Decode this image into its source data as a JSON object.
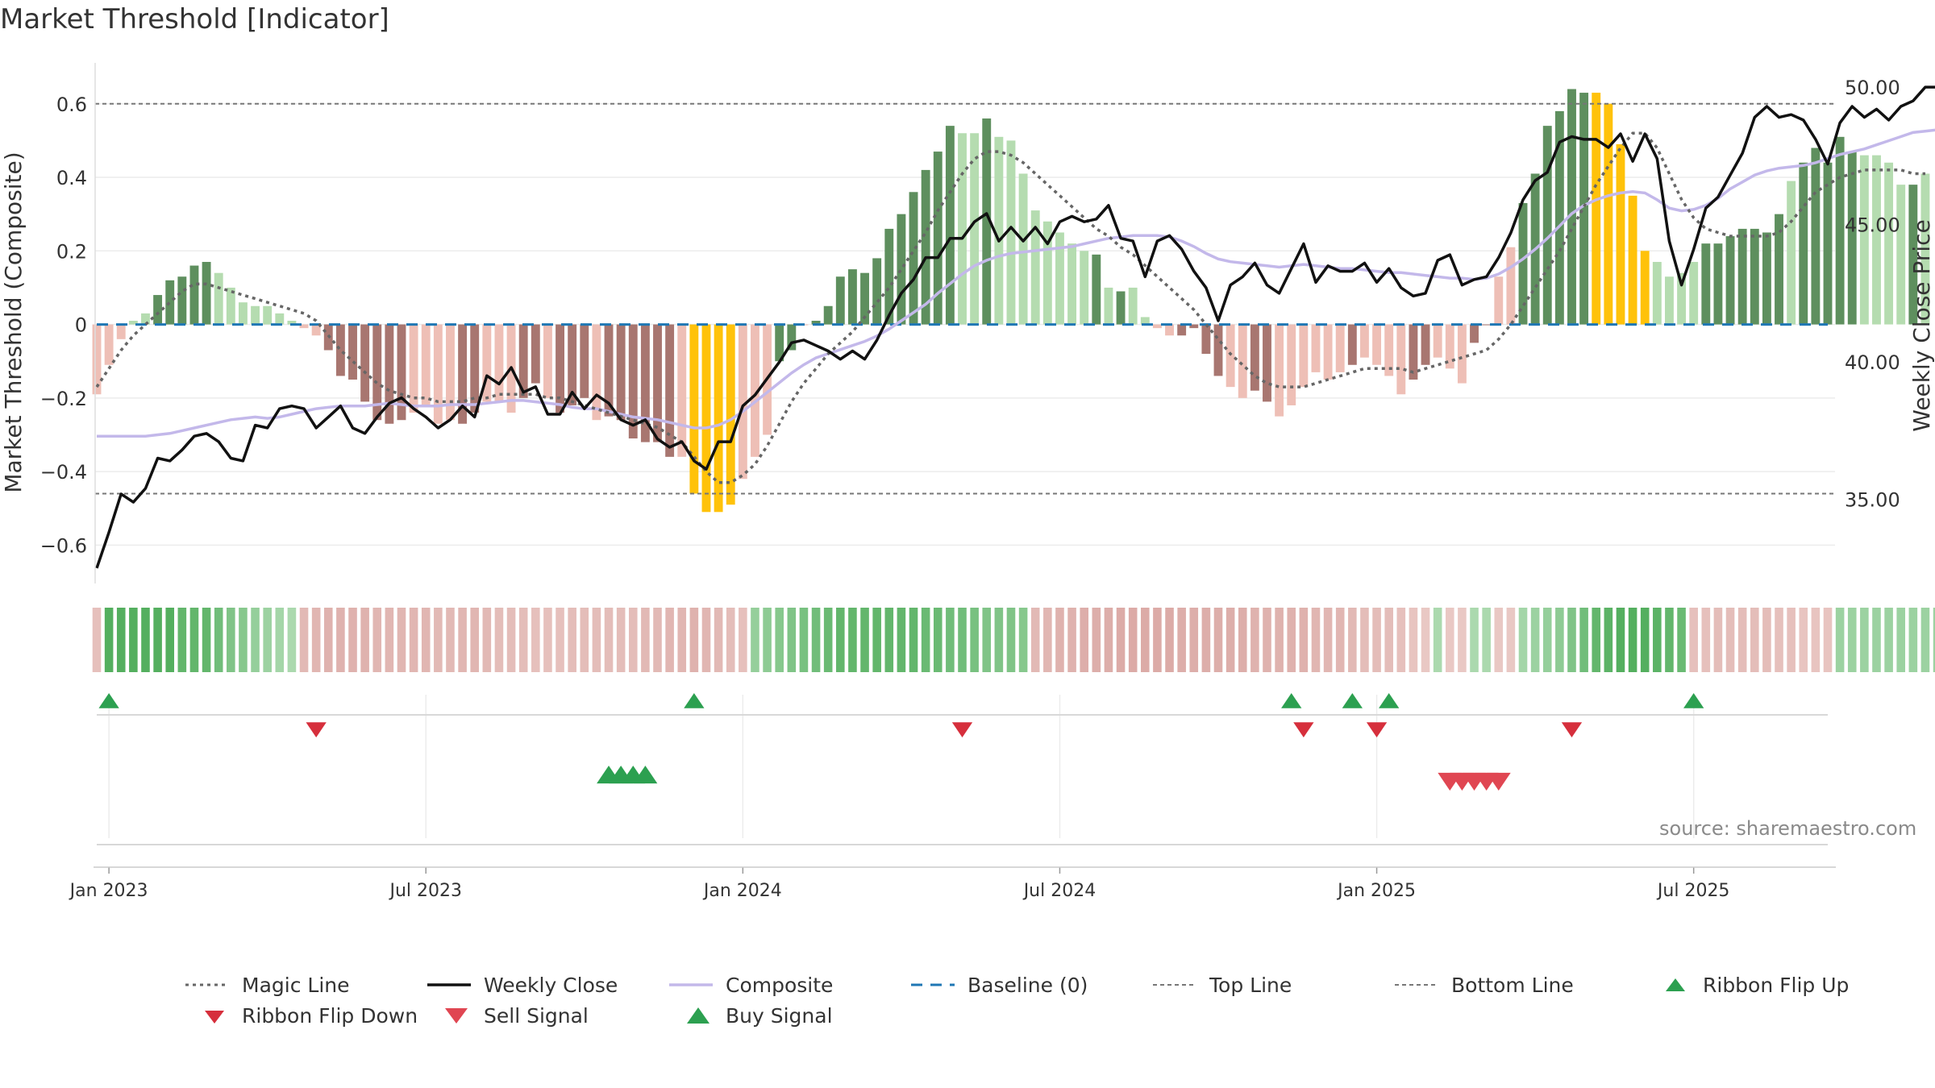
{
  "chart_data": {
    "type": "bar",
    "title": "Market Threshold [Indicator]",
    "source": "source: sharemaestro.com",
    "ylabel_left": "Market Threshold (Composite)",
    "ylabel_right": "Weekly Close Price",
    "ylim_left": [
      -0.7,
      0.72
    ],
    "ylim_right": [
      32.0,
      51.0
    ],
    "left_ticks": [
      "−0.6",
      "−0.4",
      "−0.2",
      "0",
      "0.2",
      "0.4",
      "0.6"
    ],
    "left_tick_values": [
      -0.6,
      -0.4,
      -0.2,
      0,
      0.2,
      0.4,
      0.6
    ],
    "right_ticks": [
      "35.00",
      "40.00",
      "45.00",
      "50.00"
    ],
    "right_tick_values": [
      35,
      40,
      45,
      50
    ],
    "x_ticks": [
      "Jan 2023",
      "Jul 2023",
      "Jan 2024",
      "Jul 2024",
      "Jan 2025",
      "Jul 2025"
    ],
    "x_tick_weeks": [
      1,
      27,
      53,
      79,
      105,
      131
    ],
    "top_line": 0.6,
    "bottom_line": -0.46,
    "week_count": 143,
    "grid": true,
    "colors": {
      "strong_green": "#5e8f5e",
      "light_green": "#b5dcb0",
      "strong_red": "#a87670",
      "light_red": "#eebfb6",
      "extreme": "#ffc20a",
      "magic_line": "#666666",
      "close_line": "#111111",
      "composite_line": "#c3b8ea",
      "baseline": "#1f77b4",
      "buy": "#2ca050",
      "sell": "#d62f3c"
    },
    "series": [
      {
        "name": "Composite",
        "values": [
          -0.19,
          -0.11,
          -0.04,
          0.01,
          0.03,
          0.08,
          0.12,
          0.13,
          0.16,
          0.17,
          0.14,
          0.1,
          0.06,
          0.05,
          0.05,
          0.03,
          0.01,
          -0.01,
          -0.03,
          -0.07,
          -0.14,
          -0.15,
          -0.21,
          -0.26,
          -0.27,
          -0.26,
          -0.24,
          -0.22,
          -0.27,
          -0.26,
          -0.27,
          -0.24,
          -0.21,
          -0.21,
          -0.24,
          -0.2,
          -0.16,
          -0.2,
          -0.24,
          -0.22,
          -0.2,
          -0.26,
          -0.25,
          -0.26,
          -0.31,
          -0.32,
          -0.32,
          -0.36,
          -0.36,
          -0.46,
          -0.51,
          -0.51,
          -0.49,
          -0.42,
          -0.36,
          -0.3,
          -0.1,
          -0.07,
          0.0,
          0.01,
          0.05,
          0.13,
          0.15,
          0.14,
          0.18,
          0.26,
          0.3,
          0.36,
          0.42,
          0.47,
          0.54,
          0.52,
          0.52,
          0.56,
          0.51,
          0.5,
          0.41,
          0.31,
          0.28,
          0.25,
          0.22,
          0.2,
          0.19,
          0.1,
          0.09,
          0.1,
          0.02,
          -0.01,
          -0.03,
          -0.03,
          -0.01,
          -0.08,
          -0.14,
          -0.17,
          -0.2,
          -0.18,
          -0.21,
          -0.25,
          -0.22,
          -0.17,
          -0.13,
          -0.15,
          -0.13,
          -0.11,
          -0.09,
          -0.11,
          -0.14,
          -0.19,
          -0.15,
          -0.11,
          -0.09,
          -0.12,
          -0.16,
          -0.05,
          0.0,
          0.13,
          0.21,
          0.33,
          0.41,
          0.54,
          0.58,
          0.64,
          0.63,
          0.63,
          0.6,
          0.49,
          0.35,
          0.2,
          0.17,
          0.13,
          0.14,
          0.17,
          0.22,
          0.22,
          0.24,
          0.26,
          0.26,
          0.25,
          0.3,
          0.39,
          0.44,
          0.48,
          0.44,
          0.51,
          0.47,
          0.46,
          0.46,
          0.44,
          0.38,
          0.38,
          0.41
        ]
      },
      {
        "name": "Magic Line",
        "values": [
          -0.17,
          -0.12,
          -0.07,
          -0.03,
          0.0,
          0.03,
          0.06,
          0.09,
          0.11,
          0.11,
          0.1,
          0.09,
          0.08,
          0.07,
          0.06,
          0.05,
          0.04,
          0.03,
          0.01,
          -0.03,
          -0.07,
          -0.1,
          -0.13,
          -0.16,
          -0.18,
          -0.19,
          -0.2,
          -0.2,
          -0.21,
          -0.21,
          -0.21,
          -0.2,
          -0.2,
          -0.19,
          -0.19,
          -0.19,
          -0.19,
          -0.2,
          -0.2,
          -0.21,
          -0.22,
          -0.23,
          -0.24,
          -0.25,
          -0.26,
          -0.27,
          -0.28,
          -0.3,
          -0.32,
          -0.36,
          -0.4,
          -0.43,
          -0.43,
          -0.41,
          -0.38,
          -0.33,
          -0.27,
          -0.21,
          -0.16,
          -0.12,
          -0.08,
          -0.05,
          -0.02,
          0.02,
          0.06,
          0.1,
          0.15,
          0.2,
          0.25,
          0.31,
          0.36,
          0.41,
          0.45,
          0.47,
          0.47,
          0.46,
          0.44,
          0.41,
          0.38,
          0.35,
          0.32,
          0.29,
          0.26,
          0.24,
          0.21,
          0.19,
          0.16,
          0.13,
          0.1,
          0.07,
          0.04,
          0.0,
          -0.04,
          -0.08,
          -0.11,
          -0.14,
          -0.16,
          -0.17,
          -0.17,
          -0.17,
          -0.16,
          -0.15,
          -0.14,
          -0.13,
          -0.12,
          -0.12,
          -0.12,
          -0.12,
          -0.13,
          -0.12,
          -0.11,
          -0.1,
          -0.09,
          -0.08,
          -0.07,
          -0.04,
          0.0,
          0.05,
          0.1,
          0.15,
          0.2,
          0.26,
          0.32,
          0.38,
          0.43,
          0.48,
          0.52,
          0.52,
          0.48,
          0.41,
          0.34,
          0.29,
          0.26,
          0.25,
          0.24,
          0.24,
          0.24,
          0.24,
          0.25,
          0.28,
          0.32,
          0.36,
          0.38,
          0.4,
          0.41,
          0.42,
          0.42,
          0.42,
          0.42,
          0.41,
          0.41
        ]
      },
      {
        "name": "Weekly Close",
        "values": [
          32.5,
          33.8,
          35.2,
          34.9,
          35.4,
          36.5,
          36.4,
          36.8,
          37.3,
          37.4,
          37.1,
          36.5,
          36.4,
          37.7,
          37.6,
          38.3,
          38.4,
          38.3,
          37.6,
          38.0,
          38.4,
          37.6,
          37.4,
          38.0,
          38.5,
          38.7,
          38.3,
          38.0,
          37.6,
          37.9,
          38.4,
          38.0,
          39.5,
          39.2,
          39.8,
          38.9,
          39.1,
          38.1,
          38.1,
          38.9,
          38.3,
          38.8,
          38.5,
          37.9,
          37.7,
          37.9,
          37.2,
          36.9,
          37.1,
          36.4,
          36.1,
          37.1,
          37.1,
          38.4,
          38.8,
          39.4,
          40.0,
          40.7,
          40.8,
          40.6,
          40.4,
          40.1,
          40.4,
          40.1,
          40.8,
          41.7,
          42.5,
          43.0,
          43.8,
          43.8,
          44.5,
          44.5,
          45.1,
          45.4,
          44.4,
          44.9,
          44.4,
          44.9,
          44.3,
          45.1,
          45.3,
          45.1,
          45.2,
          45.7,
          44.5,
          44.4,
          43.1,
          44.4,
          44.6,
          44.1,
          43.3,
          42.7,
          41.5,
          42.8,
          43.1,
          43.6,
          42.8,
          42.5,
          43.4,
          44.3,
          42.9,
          43.5,
          43.3,
          43.3,
          43.6,
          42.9,
          43.4,
          42.7,
          42.4,
          42.5,
          43.7,
          43.9,
          42.8,
          43.0,
          43.1,
          43.8,
          44.7,
          45.9,
          46.6,
          46.9,
          48.0,
          48.2,
          48.1,
          48.1,
          47.8,
          48.3,
          47.3,
          48.3,
          47.4,
          44.4,
          42.8,
          44.1,
          45.6,
          46.0,
          46.8,
          47.6,
          48.9,
          49.3,
          48.9,
          49.0,
          48.8,
          48.1,
          47.2,
          48.7,
          49.3,
          48.9,
          49.2,
          48.8,
          49.3,
          49.5,
          50.0,
          50.0,
          49.7,
          49.5,
          50.0,
          50.1
        ]
      },
      {
        "name": "Composite Line",
        "values": [
          37.3,
          37.3,
          37.3,
          37.3,
          37.3,
          37.35,
          37.4,
          37.5,
          37.6,
          37.7,
          37.8,
          37.9,
          37.95,
          38.0,
          37.95,
          38.0,
          38.1,
          38.2,
          38.3,
          38.35,
          38.4,
          38.4,
          38.4,
          38.45,
          38.5,
          38.45,
          38.4,
          38.4,
          38.4,
          38.45,
          38.45,
          38.45,
          38.5,
          38.55,
          38.6,
          38.6,
          38.55,
          38.5,
          38.45,
          38.35,
          38.3,
          38.3,
          38.2,
          38.1,
          38.0,
          37.95,
          37.9,
          37.8,
          37.7,
          37.6,
          37.6,
          37.7,
          37.9,
          38.2,
          38.55,
          38.9,
          39.25,
          39.6,
          39.9,
          40.15,
          40.3,
          40.45,
          40.6,
          40.75,
          40.95,
          41.2,
          41.5,
          41.8,
          42.1,
          42.5,
          42.85,
          43.2,
          43.5,
          43.7,
          43.85,
          43.95,
          44.0,
          44.05,
          44.1,
          44.15,
          44.2,
          44.3,
          44.4,
          44.5,
          44.55,
          44.6,
          44.6,
          44.6,
          44.55,
          44.4,
          44.2,
          43.95,
          43.75,
          43.65,
          43.6,
          43.55,
          43.5,
          43.45,
          43.5,
          43.55,
          43.5,
          43.45,
          43.4,
          43.4,
          43.35,
          43.3,
          43.25,
          43.25,
          43.2,
          43.15,
          43.1,
          43.05,
          43.05,
          43.0,
          43.05,
          43.2,
          43.45,
          43.75,
          44.1,
          44.5,
          44.95,
          45.4,
          45.7,
          45.9,
          46.05,
          46.15,
          46.2,
          46.15,
          45.9,
          45.6,
          45.5,
          45.55,
          45.7,
          45.95,
          46.3,
          46.55,
          46.8,
          46.95,
          47.05,
          47.1,
          47.15,
          47.25,
          47.4,
          47.55,
          47.65,
          47.75,
          47.9,
          48.05,
          48.2,
          48.35,
          48.4,
          48.45,
          48.55
        ]
      }
    ],
    "bar_colors": [
      "lr",
      "lr",
      "lr",
      "lg",
      "lg",
      "sg",
      "sg",
      "sg",
      "sg",
      "sg",
      "lg",
      "lg",
      "lg",
      "lg",
      "lg",
      "lg",
      "lg",
      "lr",
      "lr",
      "sr",
      "sr",
      "sr",
      "sr",
      "sr",
      "sr",
      "sr",
      "lr",
      "lr",
      "lr",
      "lr",
      "sr",
      "sr",
      "lr",
      "lr",
      "lr",
      "sr",
      "sr",
      "lr",
      "sr",
      "sr",
      "sr",
      "lr",
      "sr",
      "sr",
      "sr",
      "sr",
      "sr",
      "sr",
      "lr",
      "yy",
      "yy",
      "yy",
      "yy",
      "lr",
      "lr",
      "lr",
      "sg",
      "sg",
      "lr",
      "sg",
      "sg",
      "sg",
      "sg",
      "sg",
      "sg",
      "sg",
      "sg",
      "sg",
      "sg",
      "sg",
      "sg",
      "lg",
      "lg",
      "sg",
      "lg",
      "lg",
      "lg",
      "lg",
      "lg",
      "lg",
      "lg",
      "lg",
      "sg",
      "lg",
      "sg",
      "lg",
      "lg",
      "lr",
      "lr",
      "sr",
      "sr",
      "sr",
      "sr",
      "lr",
      "lr",
      "sr",
      "sr",
      "lr",
      "lr",
      "lr",
      "lr",
      "lr",
      "lr",
      "sr",
      "lr",
      "lr",
      "lr",
      "lr",
      "sr",
      "sr",
      "lr",
      "lr",
      "lr",
      "sr",
      "sr",
      "lr",
      "lr",
      "sg",
      "sg",
      "sg",
      "sg",
      "sg",
      "sg",
      "yy",
      "yy",
      "yy",
      "yy",
      "yy",
      "lg",
      "lg",
      "lg",
      "lg",
      "sg",
      "sg",
      "sg",
      "sg",
      "sg",
      "sg",
      "sg",
      "lg",
      "sg",
      "sg",
      "sg",
      "sg",
      "sg",
      "lg",
      "lg",
      "lg",
      "lg",
      "sg"
    ],
    "ribbon_values": [
      -0.3,
      0.9,
      0.9,
      0.9,
      0.9,
      0.9,
      0.9,
      0.8,
      0.8,
      0.8,
      0.7,
      0.6,
      0.55,
      0.45,
      0.4,
      0.35,
      0.3,
      -0.4,
      -0.45,
      -0.5,
      -0.5,
      -0.5,
      -0.5,
      -0.45,
      -0.45,
      -0.45,
      -0.45,
      -0.45,
      -0.4,
      -0.4,
      -0.45,
      -0.45,
      -0.4,
      -0.35,
      -0.35,
      -0.35,
      -0.3,
      -0.3,
      -0.3,
      -0.35,
      -0.35,
      -0.35,
      -0.35,
      -0.35,
      -0.35,
      -0.4,
      -0.4,
      -0.45,
      -0.45,
      -0.5,
      -0.45,
      -0.4,
      -0.35,
      -0.3,
      0.45,
      0.5,
      0.55,
      0.6,
      0.65,
      0.7,
      0.75,
      0.8,
      0.8,
      0.8,
      0.8,
      0.8,
      0.8,
      0.8,
      0.75,
      0.75,
      0.7,
      0.7,
      0.65,
      0.6,
      0.6,
      0.6,
      0.55,
      -0.4,
      -0.45,
      -0.5,
      -0.5,
      -0.55,
      -0.55,
      -0.55,
      -0.6,
      -0.6,
      -0.6,
      -0.6,
      -0.6,
      -0.55,
      -0.55,
      -0.55,
      -0.55,
      -0.55,
      -0.55,
      -0.5,
      -0.5,
      -0.5,
      -0.5,
      -0.5,
      -0.45,
      -0.45,
      -0.45,
      -0.4,
      -0.35,
      -0.35,
      -0.35,
      -0.3,
      -0.25,
      -0.2,
      0.3,
      -0.2,
      -0.2,
      0.3,
      0.3,
      -0.2,
      -0.2,
      0.35,
      0.4,
      0.45,
      0.5,
      0.6,
      0.7,
      0.8,
      0.85,
      0.9,
      0.9,
      0.9,
      0.85,
      0.8,
      0.75,
      -0.3,
      -0.3,
      -0.35,
      -0.35,
      -0.35,
      -0.35,
      -0.35,
      -0.3,
      -0.3,
      -0.25,
      -0.25,
      -0.25,
      0.4,
      0.4,
      0.4,
      0.4,
      0.4,
      0.4,
      0.4,
      0.4,
      0.4,
      0.4,
      0.4,
      0.4
    ],
    "ribbon_flip_up_weeks": [
      1,
      49,
      98,
      103,
      106,
      131
    ],
    "ribbon_flip_down_weeks": [
      18,
      71,
      99,
      105,
      121
    ],
    "buy_signal_weeks": [
      42,
      43,
      44,
      45
    ],
    "sell_signal_weeks": [
      111,
      112,
      113,
      114,
      115
    ],
    "legend": [
      {
        "label": "Magic Line",
        "kind": "dotted"
      },
      {
        "label": "Weekly Close",
        "kind": "solid"
      },
      {
        "label": "Composite",
        "kind": "lavender"
      },
      {
        "label": "Baseline (0)",
        "kind": "dashed"
      },
      {
        "label": "Top Line",
        "kind": "thin-dotted"
      },
      {
        "label": "Bottom Line",
        "kind": "thin-dotted"
      },
      {
        "label": "Ribbon Flip Up",
        "kind": "tri-up-green"
      },
      {
        "label": "Ribbon Flip Down",
        "kind": "tri-down-red"
      },
      {
        "label": "Sell Signal",
        "kind": "tri-down-red-big"
      },
      {
        "label": "Buy Signal",
        "kind": "tri-up-green-big"
      }
    ]
  }
}
